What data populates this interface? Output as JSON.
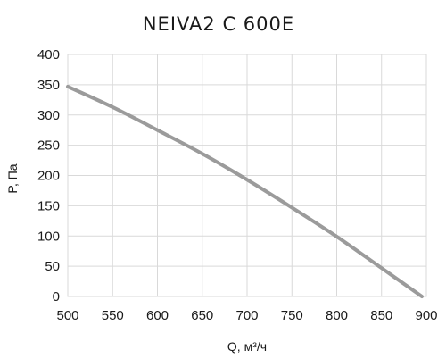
{
  "chart_data": {
    "type": "line",
    "title": "NEIVA2 C 600E",
    "xlabel": "Q, м³/ч",
    "ylabel": "P, Па",
    "xlim": [
      500,
      900
    ],
    "ylim": [
      0,
      400
    ],
    "x_ticks": [
      500,
      550,
      600,
      650,
      700,
      750,
      800,
      850,
      900
    ],
    "y_ticks": [
      0,
      50,
      100,
      150,
      200,
      250,
      300,
      350,
      400
    ],
    "grid": true,
    "legend": "none",
    "series": [
      {
        "color": "#9b9b9b",
        "x": [
          500,
          550,
          600,
          650,
          700,
          750,
          800,
          850,
          895
        ],
        "y": [
          347,
          313,
          275,
          236,
          193,
          147,
          99,
          47,
          0
        ]
      }
    ]
  }
}
